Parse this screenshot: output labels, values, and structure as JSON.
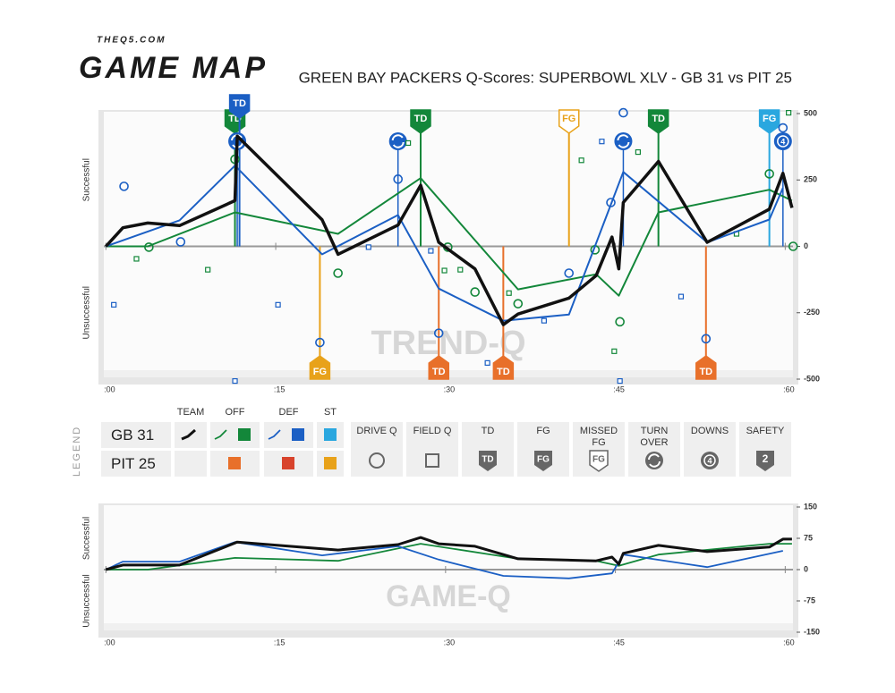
{
  "header": {
    "site": "THEQ5.COM",
    "logo": "GAME MAP",
    "title": "GREEN BAY PACKERS Q-Scores: SUPERBOWL XLV - GB 31 vs PIT 25"
  },
  "legend": {
    "title": "LEGEND",
    "columns": [
      "TEAM",
      "OFF",
      "DEF",
      "ST"
    ],
    "rows": [
      {
        "label": "GB 31",
        "team": "#111111",
        "off": "#13873a",
        "def": "#1b5fc4",
        "st": "#2aa7df"
      },
      {
        "label": "PIT 25",
        "off": "#e8702a",
        "def": "#d8432c",
        "st": "#e8a21a"
      }
    ],
    "icons": [
      {
        "label": "DRIVE Q"
      },
      {
        "label": "FIELD Q"
      },
      {
        "label": "TD"
      },
      {
        "label": "FG"
      },
      {
        "label": "MISSED FG"
      },
      {
        "label": "TURN OVER"
      },
      {
        "label": "DOWNS",
        "badge": "4"
      },
      {
        "label": "SAFETY",
        "badge": "2"
      }
    ]
  },
  "chart_data": [
    {
      "type": "line",
      "watermark": "TREND-Q",
      "y_label_top": "Successful",
      "y_label_bottom": "Unsuccessful",
      "xlim": [
        -0.5,
        61
      ],
      "xticks": [
        {
          "value": 0,
          "label": ":00"
        },
        {
          "value": 15,
          "label": ":15"
        },
        {
          "value": 30,
          "label": ":30"
        },
        {
          "value": 45,
          "label": ":45"
        },
        {
          "value": 60,
          "label": ":60"
        }
      ],
      "ylim": [
        -500,
        500
      ],
      "yticks": [
        500,
        250,
        0,
        -250,
        -500
      ],
      "series": [
        {
          "color": "#13873a",
          "width": 2,
          "x": [
            0,
            3.7,
            11.4,
            20.5,
            27.8,
            36.4,
            43.3,
            45.3,
            48.8,
            58.6,
            60.6
          ],
          "values": [
            0,
            0,
            128,
            47,
            257,
            -162,
            -105,
            -186,
            128,
            213,
            172
          ]
        },
        {
          "color": "#1b5fc4",
          "width": 2,
          "x": [
            0,
            6.5,
            11.4,
            19.1,
            25.8,
            29.4,
            35.1,
            40.9,
            45.7,
            53.1,
            58.6,
            59.8
          ],
          "values": [
            0,
            98,
            304,
            -30,
            118,
            -159,
            -280,
            -257,
            280,
            15,
            101,
            220
          ]
        },
        {
          "color": "#111111",
          "width": 3.5,
          "x": [
            0,
            1.5,
            3.7,
            6.5,
            11.4,
            11.6,
            19.1,
            20.5,
            25.8,
            27.8,
            29.4,
            32.6,
            35.1,
            36.4,
            40.9,
            43.3,
            44.7,
            45.3,
            45.7,
            48.8,
            53.1,
            58.6,
            59.8,
            60.6
          ],
          "values": [
            0,
            70,
            88,
            78,
            172,
            415,
            100,
            -30,
            80,
            230,
            15,
            -85,
            -295,
            -255,
            -195,
            -110,
            35,
            -85,
            165,
            320,
            15,
            140,
            275,
            145
          ]
        }
      ],
      "drive_q": [
        {
          "color": "#1b5fc4",
          "x": [
            1.6,
            6.6,
            18.9,
            25.8,
            29.4,
            40.9,
            44.6,
            45.7,
            53.0,
            59.8
          ],
          "values": [
            226,
            17,
            -362,
            253,
            -327,
            -101,
            165,
            503,
            -348,
            446
          ]
        },
        {
          "color": "#13873a",
          "x": [
            3.8,
            11.4,
            20.5,
            30.2,
            32.6,
            36.4,
            43.2,
            45.4,
            58.6,
            60.7
          ],
          "values": [
            -3,
            328,
            -101,
            -3,
            -172,
            -216,
            -13,
            -284,
            273,
            0
          ]
        }
      ],
      "field_q": [
        {
          "color": "#1b5fc4",
          "x": [
            0.7,
            11.4,
            15.2,
            23.2,
            28.7,
            33.7,
            38.7,
            43.8,
            45.4,
            50.8
          ],
          "values": [
            -220,
            -507,
            -220,
            -3,
            -17,
            -439,
            -280,
            395,
            -507,
            -189
          ]
        },
        {
          "color": "#13873a",
          "x": [
            2.7,
            9,
            26.7,
            29.9,
            31.3,
            35.6,
            42,
            44.9,
            47,
            55.7,
            60.3
          ],
          "values": [
            -47,
            -88,
            389,
            -91,
            -88,
            -176,
            324,
            -395,
            355,
            47,
            503
          ]
        }
      ],
      "events": [
        {
          "x": 11.4,
          "label": "TD",
          "color": "#13873a",
          "side": "top"
        },
        {
          "x": 11.8,
          "label": "TD",
          "color": "#1b5fc4",
          "side": "top"
        },
        {
          "x": 27.8,
          "label": "TD",
          "color": "#13873a",
          "side": "top"
        },
        {
          "x": 40.9,
          "label": "FG",
          "color": "#e8a21a",
          "side": "top",
          "missed": true
        },
        {
          "x": 48.8,
          "label": "TD",
          "color": "#13873a",
          "side": "top"
        },
        {
          "x": 58.6,
          "label": "FG",
          "color": "#2aa7df",
          "side": "top"
        },
        {
          "x": 18.9,
          "label": "FG",
          "color": "#e8a21a",
          "side": "bottom"
        },
        {
          "x": 29.4,
          "label": "TD",
          "color": "#e8702a",
          "side": "bottom"
        },
        {
          "x": 35.1,
          "label": "TD",
          "color": "#e8702a",
          "side": "bottom"
        },
        {
          "x": 53.0,
          "label": "TD",
          "color": "#e8702a",
          "side": "bottom"
        }
      ],
      "turnovers": [
        {
          "x": 11.6,
          "color": "#1b5fc4"
        },
        {
          "x": 25.8,
          "color": "#1b5fc4"
        },
        {
          "x": 45.7,
          "color": "#1b5fc4"
        }
      ],
      "downs": [
        {
          "x": 59.8,
          "label": "4",
          "color": "#1b5fc4"
        }
      ]
    },
    {
      "type": "line",
      "watermark": "GAME-Q",
      "y_label_top": "Successful",
      "y_label_bottom": "Unsuccessful",
      "xlim": [
        -0.5,
        61
      ],
      "xticks": [
        {
          "value": 0,
          "label": ":00"
        },
        {
          "value": 15,
          "label": ":15"
        },
        {
          "value": 30,
          "label": ":30"
        },
        {
          "value": 45,
          "label": ":45"
        },
        {
          "value": 60,
          "label": ":60"
        }
      ],
      "ylim": [
        -150,
        150
      ],
      "yticks": [
        150,
        75,
        0,
        -75,
        -150
      ],
      "series": [
        {
          "color": "#13873a",
          "width": 1.8,
          "x": [
            0,
            3.7,
            11.4,
            20.5,
            27.8,
            36.4,
            43.3,
            45.3,
            48.8,
            58.6,
            60.6
          ],
          "values": [
            0,
            0,
            28,
            21,
            62,
            26,
            21,
            9,
            36,
            62,
            62
          ]
        },
        {
          "color": "#1b5fc4",
          "width": 1.8,
          "x": [
            0,
            1.5,
            6.5,
            11.4,
            19.1,
            25.8,
            29.4,
            35.1,
            40.9,
            44.7,
            45.7,
            53.1,
            59.8
          ],
          "values": [
            0,
            19,
            19,
            66,
            34,
            56,
            24,
            -15,
            -21,
            -9,
            36,
            6,
            45
          ]
        },
        {
          "color": "#111111",
          "width": 3,
          "x": [
            0,
            1.5,
            6.5,
            11.6,
            20.5,
            25.8,
            27.8,
            29.4,
            32.6,
            36.4,
            43.3,
            44.7,
            45.3,
            45.7,
            48.8,
            53.1,
            58.6,
            59.8,
            60.6
          ],
          "values": [
            0,
            11,
            11,
            66,
            47,
            60,
            77,
            62,
            56,
            26,
            21,
            30,
            13,
            39,
            58,
            43,
            54,
            73,
            73
          ]
        }
      ]
    }
  ]
}
